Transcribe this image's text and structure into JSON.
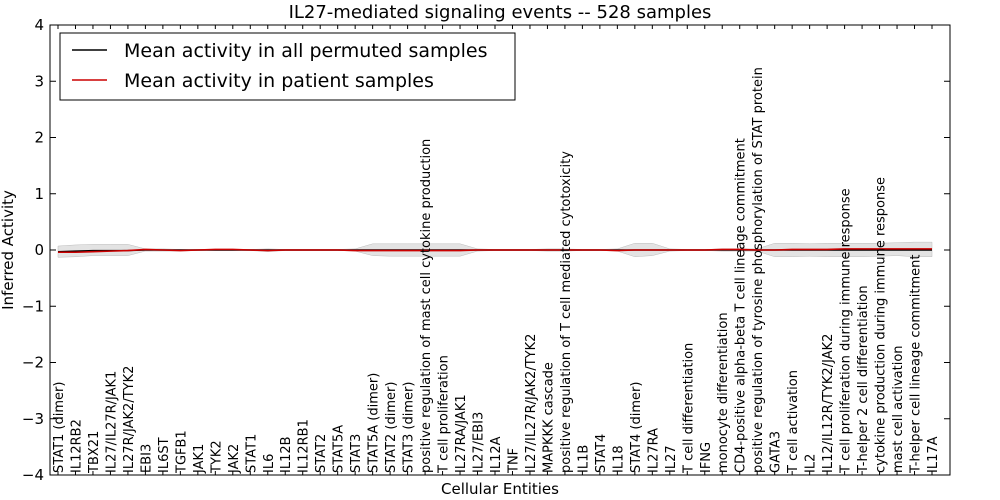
{
  "chart_data": {
    "type": "line",
    "title": "IL27-mediated signaling events -- 528 samples",
    "xlabel": "Cellular Entities",
    "ylabel": "Inferred Activity",
    "ylim": [
      -4,
      4
    ],
    "yticks": [
      -4,
      -3,
      -2,
      -1,
      0,
      1,
      2,
      3,
      4
    ],
    "grid": false,
    "legend_position": "top-left",
    "categories": [
      "STAT1 (dimer)",
      "IL12RB2",
      "TBX21",
      "IL27/IL27R/JAK1",
      "IL27R/JAK2/TYK2",
      "EBI3",
      "IL6ST",
      "TGFB1",
      "JAK1",
      "TYK2",
      "JAK2",
      "STAT1",
      "IL6",
      "IL12B",
      "IL12RB1",
      "STAT2",
      "STAT5A",
      "STAT3",
      "STAT5A (dimer)",
      "STAT2 (dimer)",
      "STAT3 (dimer)",
      "positive regulation of mast cell cytokine production",
      "T cell proliferation",
      "IL27RA/JAK1",
      "IL27/EBI3",
      "IL12A",
      "TNF",
      "IL27/IL27R/JAK2/TYK2",
      "MAPKKK cascade",
      "positive regulation of T cell mediated cytotoxicity",
      "IL1B",
      "STAT4",
      "IL18",
      "STAT4 (dimer)",
      "IL27RA",
      "IL27",
      "T cell differentiation",
      "IFNG",
      "monocyte differentiation",
      "CD4-positive alpha-beta T cell lineage commitment",
      "positive regulation of tyrosine phosphorylation of STAT protein",
      "GATA3",
      "T cell activation",
      "IL2",
      "IL12/IL12R/TYK2/JAK2",
      "T cell proliferation during immune response",
      "T-helper 2 cell differentiation",
      "cytokine production during immune response",
      "mast cell activation",
      "T-helper cell lineage commitment",
      "IL17A"
    ],
    "series": [
      {
        "name": "Mean activity in all permuted samples",
        "color": "#000000",
        "values": [
          -0.03,
          -0.02,
          -0.01,
          -0.01,
          -0.01,
          0,
          0,
          0,
          0,
          0,
          0,
          0,
          0,
          0,
          0,
          0,
          0,
          0,
          0,
          0,
          0,
          0,
          0,
          0,
          0,
          0,
          0,
          0,
          0,
          0,
          0,
          0,
          0,
          0,
          0,
          0,
          0,
          0,
          0,
          0,
          0,
          0,
          0,
          0,
          0,
          0,
          0,
          0,
          0,
          0,
          0
        ]
      },
      {
        "name": "Mean activity in patient samples",
        "color": "#cc0000",
        "values": [
          -0.04,
          -0.04,
          -0.03,
          -0.02,
          -0.01,
          0.01,
          0,
          -0.01,
          0,
          0.01,
          0.01,
          0,
          -0.01,
          0,
          0,
          0,
          0,
          -0.01,
          -0.01,
          -0.01,
          -0.01,
          -0.01,
          -0.01,
          -0.01,
          0,
          0,
          0,
          0,
          0,
          0,
          0,
          0,
          -0.01,
          0,
          0,
          0,
          0,
          0,
          0.01,
          0.01,
          0,
          0,
          0.01,
          0.01,
          0.01,
          0.02,
          0.02,
          0.02,
          0.02,
          0.02,
          0.02
        ]
      }
    ],
    "band": {
      "upper": [
        0.07,
        0.09,
        0.1,
        0.1,
        0.1,
        0.02,
        0.02,
        0.01,
        0.01,
        0.01,
        0.01,
        0.01,
        0.02,
        0.01,
        0.01,
        0.01,
        0.01,
        0.02,
        0.11,
        0.11,
        0.11,
        0.11,
        0.11,
        0.11,
        0.02,
        0.01,
        0.01,
        0.01,
        0.02,
        0.02,
        0.01,
        0.01,
        0.02,
        0.12,
        0.12,
        0.02,
        0.01,
        0.01,
        0.02,
        0.02,
        0.02,
        0.12,
        0.12,
        0.11,
        0.12,
        0.12,
        0.12,
        0.12,
        0.13,
        0.14,
        0.14
      ],
      "lower": [
        -0.13,
        -0.12,
        -0.1,
        -0.1,
        -0.1,
        -0.02,
        -0.02,
        -0.02,
        -0.01,
        -0.01,
        -0.01,
        -0.01,
        -0.03,
        -0.01,
        -0.01,
        -0.01,
        -0.01,
        -0.02,
        -0.1,
        -0.11,
        -0.11,
        -0.11,
        -0.11,
        -0.11,
        -0.02,
        -0.01,
        -0.01,
        -0.01,
        -0.02,
        -0.02,
        -0.01,
        -0.01,
        -0.02,
        -0.12,
        -0.1,
        -0.02,
        -0.01,
        -0.01,
        -0.02,
        -0.02,
        -0.02,
        -0.12,
        -0.12,
        -0.11,
        -0.12,
        -0.12,
        -0.12,
        -0.11,
        -0.1,
        -0.12,
        -0.12
      ]
    }
  }
}
